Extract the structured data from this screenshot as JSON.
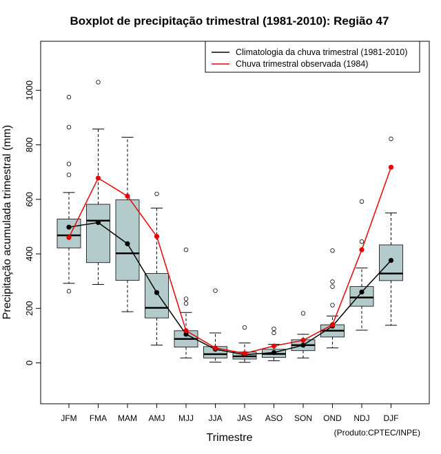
{
  "chart_data": {
    "type": "boxplot",
    "title": "Boxplot de precipitação trimestral (1981-2010): Região 47",
    "xlabel": "Trimestre",
    "ylabel": "Precipitação acumulada trimestral (mm)",
    "ylim": [
      -150,
      1180
    ],
    "yticks": [
      0,
      200,
      400,
      600,
      800,
      1000
    ],
    "categories": [
      "JFM",
      "FMA",
      "MAM",
      "AMJ",
      "MJJ",
      "JJA",
      "JAS",
      "ASO",
      "SON",
      "OND",
      "NDJ",
      "DJF"
    ],
    "boxes": [
      {
        "whisker_low": 292,
        "q1": 422,
        "median": 468,
        "q3": 528,
        "whisker_high": 625,
        "outliers": [
          263,
          690,
          730,
          865,
          975
        ]
      },
      {
        "whisker_low": 288,
        "q1": 368,
        "median": 522,
        "q3": 582,
        "whisker_high": 858,
        "outliers": [
          1030
        ]
      },
      {
        "whisker_low": 188,
        "q1": 303,
        "median": 402,
        "q3": 598,
        "whisker_high": 828,
        "outliers": []
      },
      {
        "whisker_low": 65,
        "q1": 165,
        "median": 202,
        "q3": 328,
        "whisker_high": 568,
        "outliers": [
          620
        ]
      },
      {
        "whisker_low": 18,
        "q1": 58,
        "median": 88,
        "q3": 118,
        "whisker_high": 185,
        "outliers": [
          218,
          235,
          415
        ]
      },
      {
        "whisker_low": 3,
        "q1": 18,
        "median": 32,
        "q3": 60,
        "whisker_high": 110,
        "outliers": [
          265
        ]
      },
      {
        "whisker_low": 2,
        "q1": 14,
        "median": 24,
        "q3": 40,
        "whisker_high": 73,
        "outliers": [
          130
        ]
      },
      {
        "whisker_low": 8,
        "q1": 20,
        "median": 33,
        "q3": 50,
        "whisker_high": 68,
        "outliers": [
          110,
          125
        ]
      },
      {
        "whisker_low": 18,
        "q1": 45,
        "median": 65,
        "q3": 85,
        "whisker_high": 105,
        "outliers": [
          182
        ]
      },
      {
        "whisker_low": 55,
        "q1": 95,
        "median": 118,
        "q3": 140,
        "whisker_high": 172,
        "outliers": [
          212,
          280,
          298,
          412
        ]
      },
      {
        "whisker_low": 120,
        "q1": 208,
        "median": 240,
        "q3": 280,
        "whisker_high": 348,
        "outliers": [
          445,
          592
        ]
      },
      {
        "whisker_low": 138,
        "q1": 302,
        "median": 328,
        "q3": 433,
        "whisker_high": 550,
        "outliers": [
          822
        ]
      }
    ],
    "series": [
      {
        "name": "Climatologia da chuva trimestral (1981-2010)",
        "color": "#000000",
        "values": [
          498,
          515,
          437,
          258,
          105,
          50,
          30,
          38,
          65,
          135,
          260,
          376
        ]
      },
      {
        "name": "Chuva trimestral observada (1984)",
        "color": "#e80000",
        "values": [
          460,
          678,
          612,
          464,
          118,
          55,
          35,
          62,
          83,
          140,
          415,
          718
        ]
      }
    ],
    "box_color": "#b3cbcb",
    "legend_position": "top-right",
    "credit": "(Produto:CPTEC/INPE)"
  }
}
